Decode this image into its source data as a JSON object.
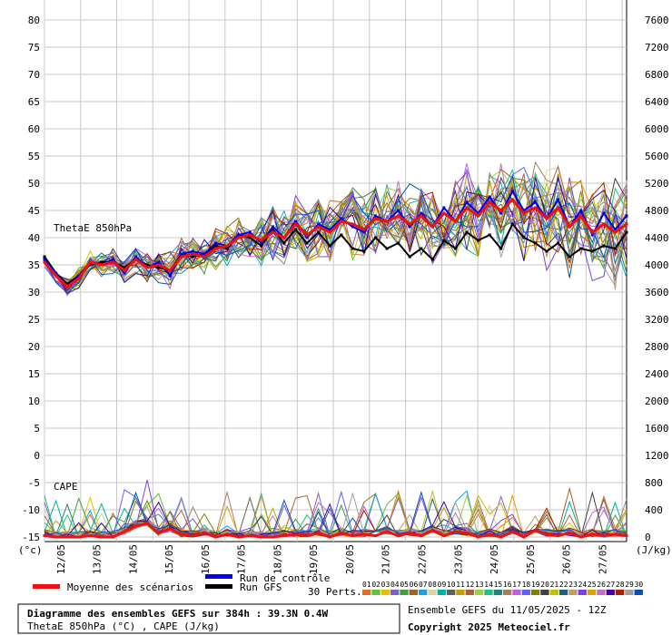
{
  "chart_data": {
    "type": "line",
    "grid": true,
    "left_axis": {
      "unit": "(°c)",
      "ylim": [
        -15,
        80
      ],
      "ticks": [
        80,
        75,
        70,
        65,
        60,
        55,
        50,
        45,
        40,
        35,
        30,
        25,
        20,
        15,
        10,
        5,
        0,
        -5,
        -10,
        -15
      ]
    },
    "right_axis": {
      "unit": "(J/kg)",
      "ylim": [
        0,
        7600
      ],
      "ticks": [
        7600,
        7200,
        6800,
        6400,
        6000,
        5600,
        5200,
        4800,
        4400,
        4000,
        3600,
        3200,
        2800,
        2400,
        2000,
        1600,
        1200,
        800,
        400,
        0
      ]
    },
    "x_axis": {
      "dates": [
        "12/05",
        "13/05",
        "14/05",
        "15/05",
        "16/05",
        "17/05",
        "18/05",
        "19/05",
        "20/05",
        "21/05",
        "22/05",
        "23/05",
        "24/05",
        "25/05",
        "26/05",
        "27/05"
      ]
    },
    "panel_labels": {
      "thetae": "ThetaE 850hPa",
      "cape": "CAPE"
    },
    "series_mean": {
      "name": "Moyenne des scénarios",
      "color": "#ee1111",
      "thetae": [
        35.5,
        33,
        31,
        32.5,
        35.5,
        35,
        35.5,
        34,
        36,
        34.5,
        35,
        34,
        36.5,
        37,
        36.5,
        38,
        38.5,
        40,
        40.5,
        39.5,
        41,
        40,
        42.5,
        40.5,
        42,
        41,
        43,
        42.5,
        41.5,
        43.5,
        43,
        44,
        42.5,
        44,
        42,
        44.5,
        43,
        45.5,
        44,
        46.5,
        45,
        47,
        44.5,
        45.5,
        43.5,
        45.5,
        42,
        44,
        41,
        42.5,
        41,
        42.5
      ],
      "cape": [
        20,
        0,
        0,
        0,
        20,
        0,
        0,
        80,
        160,
        200,
        60,
        120,
        40,
        20,
        60,
        0,
        40,
        0,
        20,
        0,
        0,
        20,
        40,
        20,
        60,
        0,
        60,
        20,
        40,
        20,
        80,
        20,
        60,
        20,
        100,
        20,
        80,
        60,
        0,
        40,
        0,
        80,
        0,
        100,
        40,
        20,
        60,
        0,
        40,
        20,
        40,
        20
      ]
    },
    "series_control": {
      "name": "Run de contrôle",
      "color": "#0000ee",
      "thetae": [
        36,
        33.5,
        31,
        33,
        35.5,
        35,
        36,
        33.5,
        36.5,
        34.5,
        35.5,
        33,
        37,
        37.5,
        37,
        39,
        38.5,
        40.5,
        41,
        39,
        42,
        40,
        43,
        40,
        42.5,
        41.5,
        43.5,
        42,
        41,
        44,
        43,
        45,
        42,
        44.5,
        42,
        45.5,
        43,
        46.5,
        44.5,
        47.5,
        44.5,
        48.5,
        45,
        46.5,
        43.5,
        47,
        42,
        45,
        40.5,
        44.5,
        41.5,
        44
      ]
    },
    "series_gfs": {
      "name": "Run GFS",
      "color": "#000000",
      "thetae": [
        36.5,
        33.5,
        31.5,
        33,
        35,
        35.5,
        35.5,
        34.5,
        36,
        35,
        34.5,
        34,
        37,
        36.5,
        37,
        38.5,
        38,
        40.5,
        40,
        38.5,
        41.5,
        39,
        41.5,
        39,
        41,
        38.5,
        40.5,
        38,
        37.5,
        40,
        38,
        39,
        36.5,
        38,
        36,
        39.5,
        38,
        41,
        39.5,
        40.5,
        38,
        42.5,
        40,
        39,
        37.5,
        39,
        36.5,
        38,
        37.5,
        38.5,
        38,
        41
      ]
    },
    "perturbations": {
      "label": "30 Perts.",
      "numbers": [
        "01",
        "02",
        "03",
        "04",
        "05",
        "06",
        "07",
        "08",
        "09",
        "10",
        "11",
        "12",
        "13",
        "14",
        "15",
        "16",
        "17",
        "18",
        "19",
        "20",
        "21",
        "22",
        "23",
        "24",
        "25",
        "26",
        "27",
        "28",
        "29",
        "30"
      ],
      "colors": [
        "#e07020",
        "#60c040",
        "#e0c000",
        "#8060c0",
        "#40a040",
        "#a06020",
        "#20a0e0",
        "#e0d0a0",
        "#00b0a0",
        "#606060",
        "#c0a000",
        "#b06030",
        "#a0d040",
        "#20c080",
        "#208080",
        "#a08060",
        "#c060e0",
        "#6060ff",
        "#808000",
        "#404040",
        "#c0c000",
        "#206080",
        "#c0a060",
        "#8040e0",
        "#e0a000",
        "#c070c0",
        "#4000a0",
        "#a02000",
        "#a0a0a0",
        "#0050c0"
      ]
    },
    "legend_labels": {
      "mean": "Moyenne des scénarios",
      "control": "Run de contrôle",
      "gfs": "Run GFS"
    }
  },
  "footer": {
    "title": "Diagramme des ensembles GEFS sur 384h : 39.3N 0.4W",
    "subtitle": "ThetaE 850hPa (°C) , CAPE (J/kg)",
    "run_info": "Ensemble GEFS du 11/05/2025 - 12Z",
    "copyright": "Copyright 2025 Meteociel.fr"
  }
}
